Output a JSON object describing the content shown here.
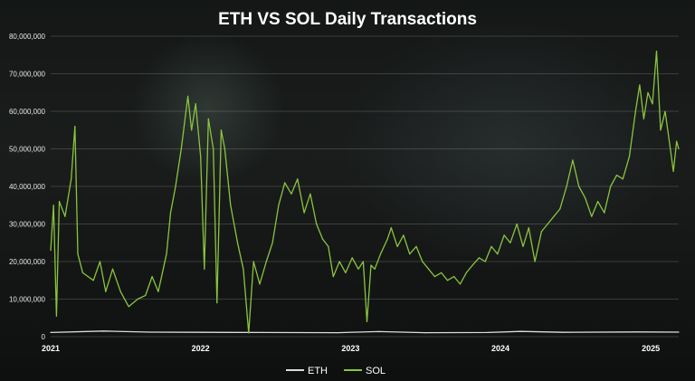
{
  "chart_data": {
    "type": "line",
    "title": "ETH VS SOL Daily Transactions",
    "xlabel": "",
    "ylabel": "",
    "ylim": [
      0,
      80000000
    ],
    "x_range": [
      "2021-01-01",
      "2025-03-10"
    ],
    "y_ticks": [
      "0",
      "10,000,000",
      "20,000,000",
      "30,000,000",
      "40,000,000",
      "50,000,000",
      "60,000,000",
      "70,000,000",
      "80,000,000"
    ],
    "x_ticks": [
      "2021",
      "2022",
      "2023",
      "2024",
      "2025"
    ],
    "grid": true,
    "legend_position": "bottom-center",
    "colors": {
      "ETH": "#dcdcdc",
      "SOL": "#8ac43f",
      "title": "#ffffff",
      "background": "#141716"
    },
    "series": [
      {
        "name": "ETH",
        "points": [
          [
            "2021-01-01",
            1100000
          ],
          [
            "2021-05-10",
            1500000
          ],
          [
            "2021-09-01",
            1200000
          ],
          [
            "2022-01-01",
            1150000
          ],
          [
            "2022-06-01",
            1100000
          ],
          [
            "2022-12-01",
            1050000
          ],
          [
            "2023-03-10",
            1350000
          ],
          [
            "2023-07-01",
            1050000
          ],
          [
            "2023-12-01",
            1100000
          ],
          [
            "2024-02-20",
            1400000
          ],
          [
            "2024-06-01",
            1150000
          ],
          [
            "2024-12-01",
            1250000
          ],
          [
            "2025-03-10",
            1200000
          ]
        ]
      },
      {
        "name": "SOL",
        "points": [
          [
            "2021-01-01",
            23000000
          ],
          [
            "2021-01-08",
            35000000
          ],
          [
            "2021-01-15",
            5500000
          ],
          [
            "2021-01-22",
            36000000
          ],
          [
            "2021-02-05",
            32000000
          ],
          [
            "2021-02-20",
            42000000
          ],
          [
            "2021-03-01",
            56000000
          ],
          [
            "2021-03-08",
            22000000
          ],
          [
            "2021-03-20",
            17000000
          ],
          [
            "2021-04-15",
            15000000
          ],
          [
            "2021-05-01",
            20000000
          ],
          [
            "2021-05-15",
            12000000
          ],
          [
            "2021-06-01",
            18000000
          ],
          [
            "2021-06-20",
            12000000
          ],
          [
            "2021-07-10",
            8000000
          ],
          [
            "2021-08-01",
            10000000
          ],
          [
            "2021-08-20",
            11000000
          ],
          [
            "2021-09-05",
            16000000
          ],
          [
            "2021-09-20",
            12000000
          ],
          [
            "2021-10-10",
            22000000
          ],
          [
            "2021-10-20",
            33000000
          ],
          [
            "2021-11-01",
            40000000
          ],
          [
            "2021-11-15",
            50000000
          ],
          [
            "2021-12-01",
            64000000
          ],
          [
            "2021-12-10",
            55000000
          ],
          [
            "2021-12-20",
            62000000
          ],
          [
            "2022-01-01",
            48000000
          ],
          [
            "2022-01-10",
            18000000
          ],
          [
            "2022-01-20",
            58000000
          ],
          [
            "2022-02-01",
            50000000
          ],
          [
            "2022-02-10",
            9000000
          ],
          [
            "2022-02-20",
            55000000
          ],
          [
            "2022-03-01",
            50000000
          ],
          [
            "2022-03-15",
            35000000
          ],
          [
            "2022-04-01",
            25000000
          ],
          [
            "2022-04-15",
            18000000
          ],
          [
            "2022-04-28",
            1000000
          ],
          [
            "2022-05-10",
            20000000
          ],
          [
            "2022-05-25",
            14000000
          ],
          [
            "2022-06-10",
            20000000
          ],
          [
            "2022-06-25",
            25000000
          ],
          [
            "2022-07-10",
            35000000
          ],
          [
            "2022-07-25",
            41000000
          ],
          [
            "2022-08-10",
            38000000
          ],
          [
            "2022-08-25",
            42000000
          ],
          [
            "2022-09-10",
            33000000
          ],
          [
            "2022-09-25",
            38000000
          ],
          [
            "2022-10-10",
            30000000
          ],
          [
            "2022-10-25",
            26000000
          ],
          [
            "2022-11-08",
            24000000
          ],
          [
            "2022-11-20",
            16000000
          ],
          [
            "2022-12-05",
            20000000
          ],
          [
            "2022-12-20",
            17000000
          ],
          [
            "2023-01-05",
            21000000
          ],
          [
            "2023-01-20",
            18000000
          ],
          [
            "2023-02-01",
            20000000
          ],
          [
            "2023-02-10",
            4000000
          ],
          [
            "2023-02-20",
            19000000
          ],
          [
            "2023-03-01",
            18000000
          ],
          [
            "2023-03-15",
            22000000
          ],
          [
            "2023-04-01",
            26000000
          ],
          [
            "2023-04-10",
            29000000
          ],
          [
            "2023-04-25",
            24000000
          ],
          [
            "2023-05-10",
            27000000
          ],
          [
            "2023-05-25",
            22000000
          ],
          [
            "2023-06-10",
            24000000
          ],
          [
            "2023-06-25",
            20000000
          ],
          [
            "2023-07-10",
            18000000
          ],
          [
            "2023-07-25",
            16000000
          ],
          [
            "2023-08-10",
            17000000
          ],
          [
            "2023-08-25",
            15000000
          ],
          [
            "2023-09-10",
            16000000
          ],
          [
            "2023-09-25",
            14000000
          ],
          [
            "2023-10-10",
            17000000
          ],
          [
            "2023-10-25",
            19000000
          ],
          [
            "2023-11-10",
            21000000
          ],
          [
            "2023-11-25",
            20000000
          ],
          [
            "2023-12-10",
            24000000
          ],
          [
            "2023-12-25",
            22000000
          ],
          [
            "2024-01-10",
            27000000
          ],
          [
            "2024-01-25",
            25000000
          ],
          [
            "2024-02-10",
            30000000
          ],
          [
            "2024-02-25",
            24000000
          ],
          [
            "2024-03-10",
            29000000
          ],
          [
            "2024-03-25",
            20000000
          ],
          [
            "2024-04-10",
            28000000
          ],
          [
            "2024-04-25",
            30000000
          ],
          [
            "2024-05-10",
            32000000
          ],
          [
            "2024-05-25",
            34000000
          ],
          [
            "2024-06-10",
            40000000
          ],
          [
            "2024-06-25",
            47000000
          ],
          [
            "2024-07-10",
            40000000
          ],
          [
            "2024-07-25",
            37000000
          ],
          [
            "2024-08-10",
            32000000
          ],
          [
            "2024-08-25",
            36000000
          ],
          [
            "2024-09-10",
            33000000
          ],
          [
            "2024-09-25",
            40000000
          ],
          [
            "2024-10-10",
            43000000
          ],
          [
            "2024-10-25",
            42000000
          ],
          [
            "2024-11-10",
            48000000
          ],
          [
            "2024-11-25",
            60000000
          ],
          [
            "2024-12-05",
            67000000
          ],
          [
            "2024-12-15",
            58000000
          ],
          [
            "2024-12-25",
            65000000
          ],
          [
            "2025-01-05",
            62000000
          ],
          [
            "2025-01-15",
            76000000
          ],
          [
            "2025-01-25",
            55000000
          ],
          [
            "2025-02-05",
            60000000
          ],
          [
            "2025-02-15",
            52000000
          ],
          [
            "2025-02-25",
            44000000
          ],
          [
            "2025-03-05",
            52000000
          ],
          [
            "2025-03-10",
            50000000
          ]
        ]
      }
    ]
  }
}
